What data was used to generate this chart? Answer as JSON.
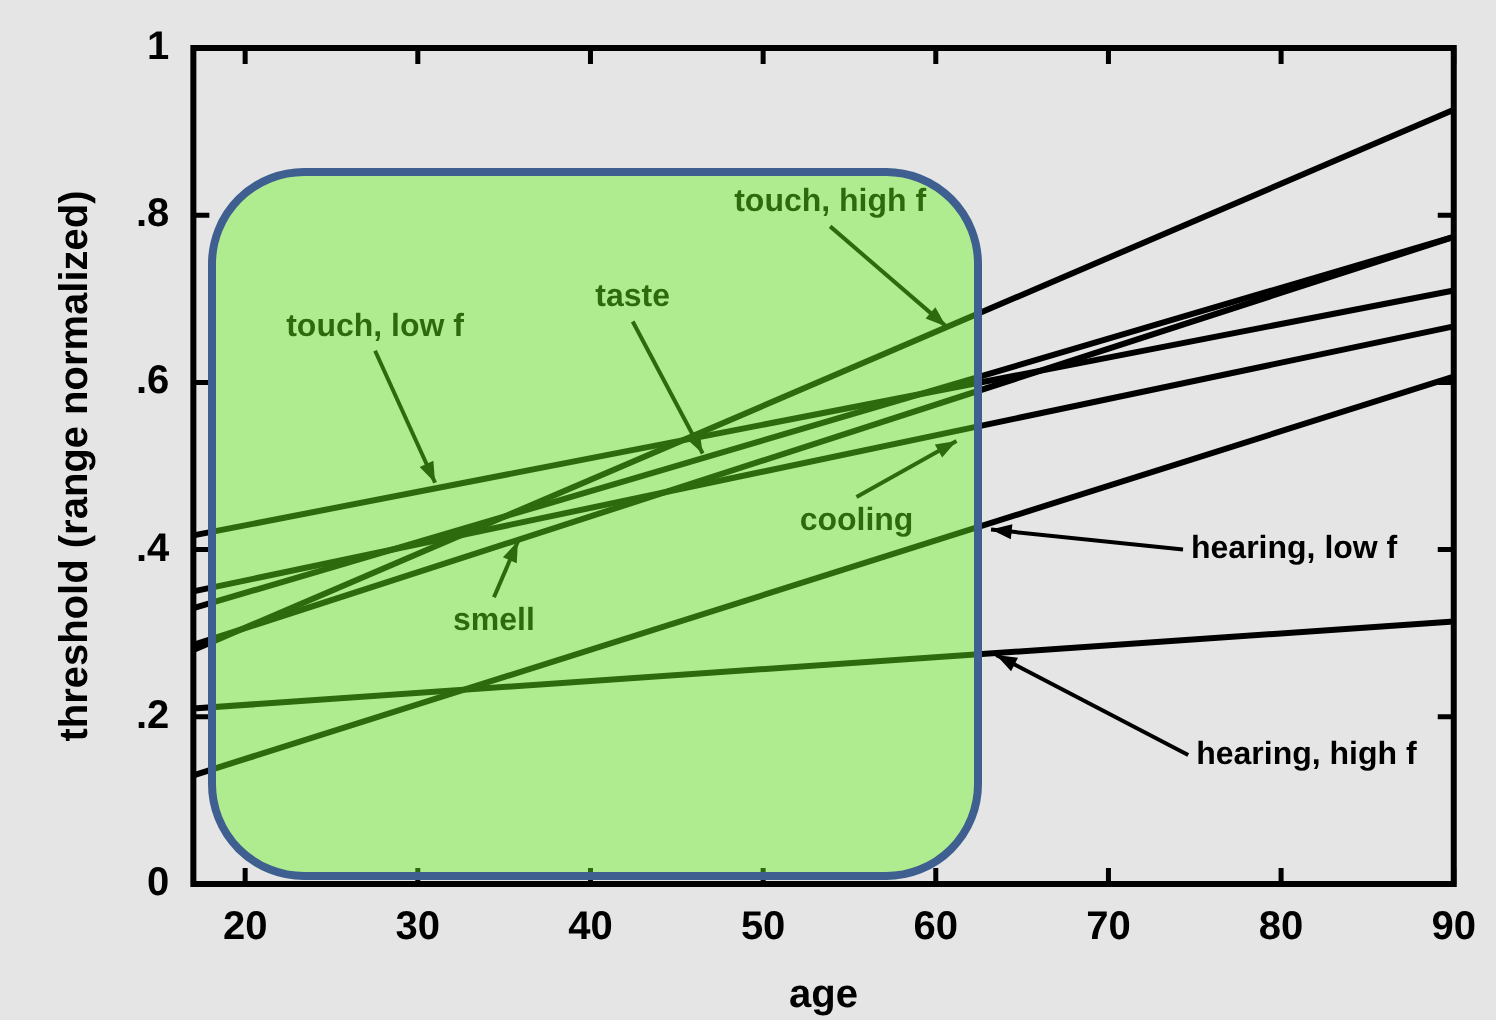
{
  "chart_data": {
    "type": "line",
    "xlabel": "age",
    "ylabel": "threshold (range normalized)",
    "x": [
      17,
      90
    ],
    "xlim": [
      17,
      90
    ],
    "xticks": [
      20,
      30,
      40,
      50,
      60,
      70,
      80,
      90
    ],
    "ylim": [
      0,
      1
    ],
    "yticks": [
      0,
      {
        "value": 0.2,
        "label": ".2"
      },
      {
        "value": 0.4,
        "label": ".4"
      },
      {
        "value": 0.6,
        "label": ".6"
      },
      {
        "value": 0.8,
        "label": ".8"
      },
      1
    ],
    "grid": false,
    "legend": false,
    "marker": "none",
    "line_style": "solid",
    "series": [
      {
        "color": "#000000",
        "values": [
          0.28,
          0.926
        ]
      },
      {
        "color": "#000000",
        "values": [
          0.417,
          0.71
        ]
      },
      {
        "color": "#000000",
        "values": [
          0.33,
          0.774
        ]
      },
      {
        "color": "#000000",
        "values": [
          0.286,
          0.774
        ]
      },
      {
        "color": "#000000",
        "values": [
          0.35,
          0.667
        ]
      },
      {
        "color": "#000000",
        "values": [
          0.13,
          0.607
        ]
      },
      {
        "color": "#000000",
        "values": [
          0.21,
          0.314
        ]
      }
    ],
    "annotations": [
      {
        "text": "touch, low f",
        "x": 31,
        "y": 0.48
      },
      {
        "text": "taste",
        "x": 46.5,
        "y": 0.515
      },
      {
        "text": "smell",
        "x": 35.8,
        "y": 0.41
      },
      {
        "text": "cooling",
        "x": 61.2,
        "y": 0.53
      },
      {
        "text": "touch, high f",
        "x": 60.6,
        "y": 0.667
      },
      {
        "text": "hearing, low f",
        "x": 63.2,
        "y": 0.424
      },
      {
        "text": "hearing, high f",
        "x": 63.5,
        "y": 0.274
      }
    ]
  }
}
